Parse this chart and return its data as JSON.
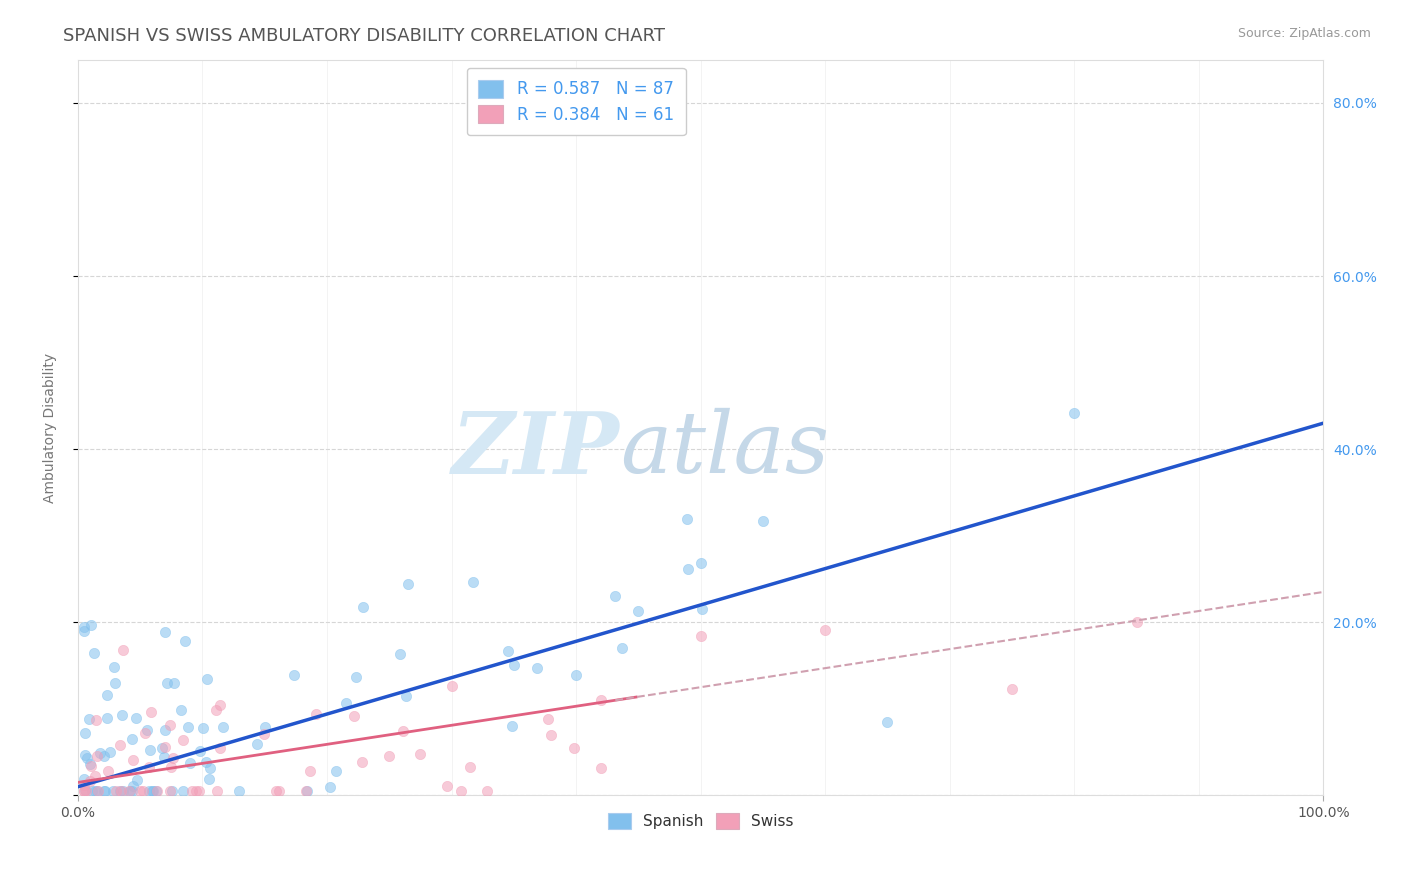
{
  "title": "SPANISH VS SWISS AMBULATORY DISABILITY CORRELATION CHART",
  "source": "Source: ZipAtlas.com",
  "ylabel": "Ambulatory Disability",
  "xlim": [
    0,
    1.0
  ],
  "ylim": [
    0,
    0.85
  ],
  "spanish_color": "#82C0ED",
  "swiss_color": "#F2A0B8",
  "spanish_line_color": "#2255CC",
  "swiss_line_color": "#E06080",
  "swiss_dash_color": "#D0A0B0",
  "spanish_R": 0.587,
  "spanish_N": 87,
  "swiss_R": 0.384,
  "swiss_N": 61,
  "legend_label1": "R = 0.587   N = 87",
  "legend_label2": "R = 0.384   N = 61",
  "legend_labels_bottom": [
    "Spanish",
    "Swiss"
  ],
  "background_color": "#ffffff",
  "grid_color": "#cccccc",
  "title_color": "#555555",
  "right_tick_color": "#4499EE",
  "title_fontsize": 13,
  "axis_label_fontsize": 10,
  "tick_fontsize": 10,
  "marker_size": 55,
  "marker_alpha": 0.55,
  "watermark_zip_color": "#D8E8F8",
  "watermark_atlas_color": "#C8D8E8"
}
